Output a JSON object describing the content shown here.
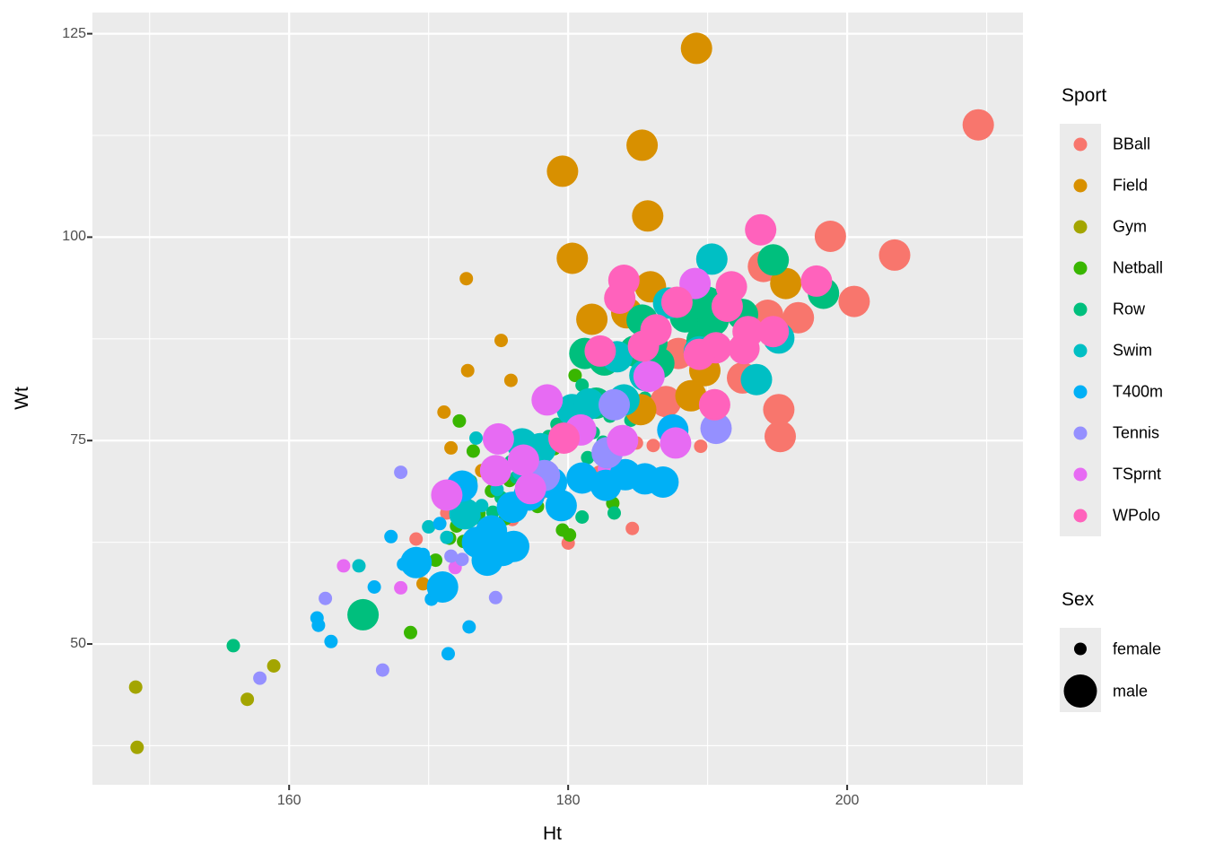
{
  "chart_data": {
    "type": "scatter",
    "title": "",
    "xlabel": "Ht",
    "ylabel": "Wt",
    "x_ticks": [
      160,
      180,
      200
    ],
    "y_ticks": [
      50,
      75,
      100,
      125
    ],
    "x_minor_gridlines": [
      150,
      170,
      190,
      210
    ],
    "y_minor_gridlines": [
      37.5,
      62.5,
      87.5,
      112.5
    ],
    "x_domain": [
      145.9,
      212.6
    ],
    "y_domain": [
      32.7,
      127.6
    ],
    "grid": "on",
    "legend_position": "right",
    "color_by": "Sport",
    "size_by": "Sex",
    "point_radius_px": {
      "female": 7.5,
      "male": 17.5
    },
    "sport_colors": {
      "BBall": "#F8766D",
      "Field": "#D89000",
      "Gym": "#A3A500",
      "Netball": "#39B600",
      "Row": "#00BF7D",
      "Swim": "#00BFC4",
      "T400m": "#00B0F6",
      "Tennis": "#9590FF",
      "TSprnt": "#E76BF3",
      "WPolo": "#FF62BC"
    },
    "point_format": [
      "ht",
      "wt"
    ],
    "series": [
      {
        "sport": "BBall",
        "sex": "female",
        "points": [
          [
            169.1,
            62.9
          ],
          [
            171.3,
            66.1
          ],
          [
            173.8,
            63.2
          ],
          [
            184.9,
            74.7
          ],
          [
            186.1,
            74.4
          ],
          [
            189.5,
            74.3
          ],
          [
            180.0,
            62.4
          ],
          [
            184.6,
            64.2
          ],
          [
            176.0,
            65.3
          ],
          [
            178.1,
            68.6
          ],
          [
            182.2,
            71.1
          ],
          [
            174.1,
            63.6
          ],
          [
            179.9,
            66.1
          ]
        ]
      },
      {
        "sport": "Field",
        "sex": "female",
        "points": [
          [
            172.7,
            94.9
          ],
          [
            175.2,
            87.3
          ],
          [
            172.8,
            83.6
          ],
          [
            175.9,
            82.4
          ],
          [
            171.1,
            78.5
          ],
          [
            171.6,
            74.1
          ],
          [
            169.6,
            57.4
          ],
          [
            173.8,
            71.3
          ]
        ]
      },
      {
        "sport": "Gym",
        "sex": "female",
        "points": [
          [
            149.0,
            44.7
          ],
          [
            149.1,
            37.3
          ],
          [
            157.0,
            43.2
          ],
          [
            158.9,
            47.3
          ]
        ]
      },
      {
        "sport": "Netball",
        "sex": "female",
        "points": [
          [
            172.2,
            77.4
          ],
          [
            173.2,
            73.7
          ],
          [
            172.5,
            62.6
          ],
          [
            168.7,
            51.4
          ],
          [
            180.5,
            83.0
          ],
          [
            183.2,
            67.3
          ],
          [
            179.6,
            64.0
          ],
          [
            180.1,
            63.4
          ],
          [
            170.5,
            60.3
          ],
          [
            172.0,
            64.5
          ],
          [
            173.6,
            66.0
          ],
          [
            174.5,
            68.8
          ],
          [
            175.8,
            70.1
          ],
          [
            176.4,
            67.4
          ],
          [
            177.2,
            69.3
          ],
          [
            178.0,
            71.8
          ],
          [
            174.2,
            71.7
          ],
          [
            173.0,
            70.0
          ],
          [
            175.5,
            65.4
          ],
          [
            176.8,
            72.8
          ],
          [
            171.5,
            63.0
          ],
          [
            177.8,
            66.9
          ],
          [
            179.0,
            74.0
          ]
        ]
      },
      {
        "sport": "Row",
        "sex": "female",
        "points": [
          [
            156.0,
            49.8
          ],
          [
            181.0,
            65.6
          ],
          [
            183.3,
            66.1
          ],
          [
            181.4,
            72.9
          ],
          [
            181.0,
            81.8
          ],
          [
            173.3,
            65.5
          ],
          [
            174.6,
            66.2
          ],
          [
            175.2,
            68.0
          ],
          [
            176.3,
            70.5
          ],
          [
            177.0,
            72.0
          ],
          [
            177.9,
            74.3
          ],
          [
            178.6,
            75.5
          ],
          [
            179.2,
            77.0
          ],
          [
            180.2,
            78.5
          ],
          [
            181.8,
            76.0
          ],
          [
            182.5,
            74.8
          ],
          [
            183.0,
            78.0
          ],
          [
            184.5,
            77.5
          ],
          [
            178.4,
            68.9
          ],
          [
            175.9,
            72.4
          ],
          [
            180.8,
            70.9
          ],
          [
            185.5,
            80.2
          ]
        ]
      },
      {
        "sport": "Swim",
        "sex": "female",
        "points": [
          [
            165.0,
            59.6
          ],
          [
            170.0,
            64.4
          ],
          [
            175.0,
            63.6
          ],
          [
            173.4,
            75.3
          ],
          [
            172.0,
            66.5
          ],
          [
            173.8,
            67.0
          ],
          [
            176.5,
            71.0
          ],
          [
            174.9,
            69.0
          ],
          [
            171.3,
            63.1
          ]
        ]
      },
      {
        "sport": "T400m",
        "sex": "female",
        "points": [
          [
            167.3,
            63.2
          ],
          [
            170.8,
            64.8
          ],
          [
            166.1,
            57.0
          ],
          [
            163.0,
            50.3
          ],
          [
            162.0,
            53.2
          ],
          [
            162.1,
            52.3
          ],
          [
            172.9,
            52.1
          ],
          [
            171.4,
            48.8
          ],
          [
            169.6,
            61.0
          ],
          [
            168.2,
            59.8
          ],
          [
            170.2,
            55.5
          ]
        ]
      },
      {
        "sport": "TSprnt",
        "sex": "female",
        "points": [
          [
            163.9,
            59.6
          ],
          [
            168.0,
            56.9
          ],
          [
            171.9,
            59.4
          ],
          [
            182.6,
            71.5
          ]
        ]
      },
      {
        "sport": "Tennis",
        "sex": "female",
        "points": [
          [
            157.9,
            45.8
          ],
          [
            162.6,
            55.6
          ],
          [
            166.7,
            46.8
          ],
          [
            168.0,
            71.1
          ],
          [
            172.4,
            60.4
          ],
          [
            174.8,
            55.7
          ],
          [
            171.6,
            60.8
          ]
        ]
      },
      {
        "sport": "BBall",
        "sex": "male",
        "points": [
          [
            209.4,
            113.8
          ],
          [
            198.8,
            100.1
          ],
          [
            203.4,
            97.8
          ],
          [
            200.5,
            92.1
          ],
          [
            196.5,
            90.1
          ],
          [
            194.3,
            90.4
          ],
          [
            194.0,
            96.4
          ],
          [
            187.9,
            85.7
          ],
          [
            192.5,
            82.7
          ],
          [
            187.0,
            79.8
          ],
          [
            195.1,
            78.8
          ],
          [
            195.2,
            75.5
          ]
        ]
      },
      {
        "sport": "Field",
        "sex": "male",
        "points": [
          [
            189.2,
            123.2
          ],
          [
            185.3,
            111.3
          ],
          [
            179.6,
            108.1
          ],
          [
            185.7,
            102.6
          ],
          [
            180.3,
            97.4
          ],
          [
            195.6,
            94.3
          ],
          [
            185.9,
            93.9
          ],
          [
            189.8,
            83.6
          ],
          [
            188.8,
            80.5
          ],
          [
            185.2,
            78.8
          ],
          [
            184.2,
            90.7
          ],
          [
            181.7,
            89.9
          ]
        ]
      },
      {
        "sport": "Row",
        "sex": "male",
        "points": [
          [
            165.3,
            53.6
          ],
          [
            181.2,
            85.7
          ],
          [
            182.6,
            84.9
          ],
          [
            185.3,
            89.8
          ],
          [
            188.4,
            90.2
          ],
          [
            190.4,
            89.8
          ],
          [
            189.6,
            87.3
          ],
          [
            194.7,
            97.2
          ],
          [
            198.3,
            93.1
          ],
          [
            186.5,
            84.5
          ],
          [
            182.0,
            79.6
          ],
          [
            186.0,
            87.0
          ],
          [
            184.8,
            86.0
          ],
          [
            190.0,
            92.0
          ],
          [
            192.5,
            90.5
          ]
        ]
      },
      {
        "sport": "Swim",
        "sex": "male",
        "points": [
          [
            172.6,
            66.0
          ],
          [
            176.7,
            74.6
          ],
          [
            180.3,
            78.8
          ],
          [
            183.5,
            85.3
          ],
          [
            187.2,
            91.9
          ],
          [
            189.4,
            85.9
          ],
          [
            190.3,
            97.3
          ],
          [
            193.5,
            82.5
          ],
          [
            195.1,
            87.6
          ],
          [
            178.0,
            74.0
          ],
          [
            181.5,
            79.5
          ],
          [
            184.0,
            80.0
          ],
          [
            185.5,
            83.0
          ]
        ]
      },
      {
        "sport": "T400m",
        "sex": "male",
        "points": [
          [
            169.1,
            60.0
          ],
          [
            174.2,
            60.3
          ],
          [
            174.5,
            63.9
          ],
          [
            176.1,
            62.0
          ],
          [
            171.0,
            57.0
          ],
          [
            172.4,
            69.4
          ],
          [
            177.2,
            68.3
          ],
          [
            179.5,
            67.0
          ],
          [
            181.0,
            70.4
          ],
          [
            184.1,
            70.8
          ],
          [
            185.5,
            70.3
          ],
          [
            186.8,
            69.9
          ],
          [
            187.5,
            76.3
          ],
          [
            176.0,
            66.8
          ],
          [
            173.5,
            62.5
          ],
          [
            178.8,
            69.8
          ],
          [
            182.7,
            69.5
          ],
          [
            175.3,
            61.5
          ]
        ]
      },
      {
        "sport": "Tennis",
        "sex": "male",
        "points": [
          [
            183.3,
            79.4
          ],
          [
            190.6,
            76.5
          ],
          [
            182.8,
            73.5
          ],
          [
            178.3,
            70.7
          ]
        ]
      },
      {
        "sport": "TSprnt",
        "sex": "male",
        "points": [
          [
            171.3,
            68.3
          ],
          [
            174.8,
            71.3
          ],
          [
            175.0,
            75.2
          ],
          [
            178.5,
            80.0
          ],
          [
            185.8,
            82.9
          ],
          [
            189.1,
            94.3
          ],
          [
            187.7,
            74.7
          ],
          [
            177.3,
            69.1
          ],
          [
            180.9,
            76.3
          ],
          [
            183.9,
            75.0
          ],
          [
            176.8,
            72.6
          ]
        ]
      },
      {
        "sport": "WPolo",
        "sex": "male",
        "points": [
          [
            179.7,
            75.3
          ],
          [
            182.3,
            86.0
          ],
          [
            185.4,
            86.6
          ],
          [
            190.6,
            86.4
          ],
          [
            192.6,
            86.3
          ],
          [
            190.5,
            79.4
          ],
          [
            184.0,
            94.7
          ],
          [
            183.7,
            92.5
          ],
          [
            191.7,
            93.9
          ],
          [
            191.4,
            91.5
          ],
          [
            192.9,
            88.4
          ],
          [
            193.8,
            100.9
          ],
          [
            197.8,
            94.6
          ],
          [
            194.7,
            88.4
          ],
          [
            187.8,
            92.0
          ],
          [
            186.3,
            88.6
          ],
          [
            189.4,
            85.6
          ]
        ]
      }
    ]
  },
  "axes": {
    "x_title": "Ht",
    "y_title": "Wt",
    "x_tick_labels": [
      "160",
      "180",
      "200"
    ],
    "y_tick_labels": [
      "50",
      "75",
      "100",
      "125"
    ]
  },
  "legend_sport": {
    "title": "Sport",
    "entries": [
      {
        "label": "BBall",
        "color": "#F8766D"
      },
      {
        "label": "Field",
        "color": "#D89000"
      },
      {
        "label": "Gym",
        "color": "#A3A500"
      },
      {
        "label": "Netball",
        "color": "#39B600"
      },
      {
        "label": "Row",
        "color": "#00BF7D"
      },
      {
        "label": "Swim",
        "color": "#00BFC4"
      },
      {
        "label": "T400m",
        "color": "#00B0F6"
      },
      {
        "label": "Tennis",
        "color": "#9590FF"
      },
      {
        "label": "TSprnt",
        "color": "#E76BF3"
      },
      {
        "label": "WPolo",
        "color": "#FF62BC"
      }
    ]
  },
  "legend_sex": {
    "title": "Sex",
    "dot_color": "#000000",
    "entries": [
      {
        "label": "female",
        "radius": 7
      },
      {
        "label": "male",
        "radius": 18.5
      }
    ]
  },
  "style": {
    "panel_bg": "#EBEBEB",
    "gridline_color": "#FFFFFF",
    "tick_mark_color": "#333333",
    "tick_label_color": "#4D4D4D",
    "key_bg": "#EBEBEB"
  }
}
